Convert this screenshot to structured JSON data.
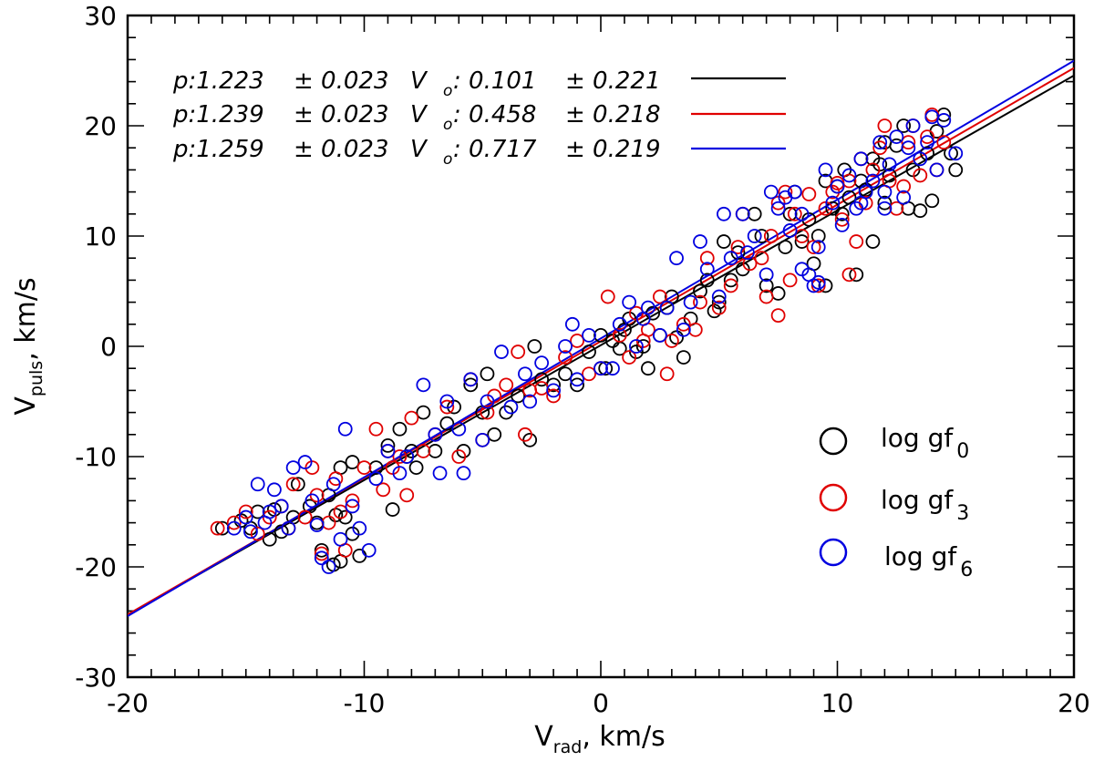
{
  "chart_data": {
    "type": "scatter",
    "title": "",
    "xlabel": {
      "main": "V",
      "sub": "rad",
      "tail": ", km/s"
    },
    "ylabel": {
      "main": "V",
      "sub": "puls",
      "tail": ", km/s"
    },
    "xlim": [
      -20,
      20
    ],
    "ylim": [
      -30,
      30
    ],
    "xticks": [
      -20,
      -10,
      0,
      10,
      20
    ],
    "yticks": [
      -30,
      -20,
      -10,
      0,
      10,
      20,
      30
    ],
    "xtick_labels": [
      "-20",
      "-10",
      "0",
      "10",
      "20"
    ],
    "ytick_labels": [
      "-30",
      "-20",
      "-10",
      "0",
      "10",
      "20",
      "30"
    ],
    "grid": false,
    "legend_position": "bottom-right",
    "fit_annotations": [
      {
        "p_label": "p:1.223",
        "p_err": "± 0.023",
        "v_main": "V",
        "v_sub": "o",
        "v_value": ": 0.101",
        "v_err": "± 0.221",
        "color": "#000000"
      },
      {
        "p_label": "p:1.239",
        "p_err": "± 0.023",
        "v_main": "V",
        "v_sub": "o",
        "v_value": ": 0.458",
        "v_err": "± 0.218",
        "color": "#e00000"
      },
      {
        "p_label": "p:1.259",
        "p_err": "± 0.023",
        "v_main": "V",
        "v_sub": "o",
        "v_value": ": 0.717",
        "v_err": "± 0.219",
        "color": "#0000e0"
      }
    ],
    "fit_lines": [
      {
        "slope": 1.223,
        "intercept": 0.101,
        "color": "#000000"
      },
      {
        "slope": 1.239,
        "intercept": 0.458,
        "color": "#e00000"
      },
      {
        "slope": 1.259,
        "intercept": 0.717,
        "color": "#0000e0"
      }
    ],
    "series": [
      {
        "name_main": "log gf",
        "name_sub": "0",
        "color": "#000000",
        "points": [
          [
            -16,
            -16.5
          ],
          [
            -15.2,
            -15.8
          ],
          [
            -14.8,
            -16.5
          ],
          [
            -14.5,
            -15
          ],
          [
            -14,
            -17.5
          ],
          [
            -13.8,
            -14.8
          ],
          [
            -13.5,
            -16.8
          ],
          [
            -13,
            -15.5
          ],
          [
            -12.8,
            -12.5
          ],
          [
            -12.3,
            -14.5
          ],
          [
            -12,
            -16
          ],
          [
            -11.8,
            -18.5
          ],
          [
            -11.5,
            -13.5
          ],
          [
            -11.2,
            -15.3
          ],
          [
            -11,
            -19.5
          ],
          [
            -11,
            -11
          ],
          [
            -10.8,
            -15.5
          ],
          [
            -10.5,
            -17
          ],
          [
            -10.5,
            -10.5
          ],
          [
            -10.2,
            -19
          ],
          [
            -11.3,
            -19.8
          ],
          [
            -9.5,
            -11
          ],
          [
            -9,
            -9
          ],
          [
            -8.8,
            -14.8
          ],
          [
            -8.5,
            -7.5
          ],
          [
            -8.2,
            -10
          ],
          [
            -8,
            -9.5
          ],
          [
            -7.8,
            -11
          ],
          [
            -7.5,
            -6
          ],
          [
            -7,
            -9.5
          ],
          [
            -6.5,
            -7
          ],
          [
            -6.2,
            -5.5
          ],
          [
            -5.8,
            -9.5
          ],
          [
            -5.5,
            -3.5
          ],
          [
            -5,
            -6
          ],
          [
            -4.8,
            -2.5
          ],
          [
            -4.5,
            -8
          ],
          [
            -4,
            -6
          ],
          [
            -3.5,
            -4.5
          ],
          [
            -3,
            -8.5
          ],
          [
            -2.8,
            0
          ],
          [
            -2.5,
            -3
          ],
          [
            -2,
            -3.5
          ],
          [
            -1.5,
            -2.5
          ],
          [
            -1,
            -3.5
          ],
          [
            -0.5,
            -0.5
          ],
          [
            0,
            1
          ],
          [
            0.2,
            -2
          ],
          [
            0.5,
            0.5
          ],
          [
            0.8,
            -0.2
          ],
          [
            1,
            1.5
          ],
          [
            1.2,
            2.5
          ],
          [
            1.5,
            -0.5
          ],
          [
            1.8,
            0
          ],
          [
            2,
            -2
          ],
          [
            2.2,
            3
          ],
          [
            2.5,
            1
          ],
          [
            2.8,
            3.5
          ],
          [
            3,
            4.5
          ],
          [
            3.2,
            0.8
          ],
          [
            3.5,
            -1
          ],
          [
            3.8,
            2.5
          ],
          [
            4.2,
            5
          ],
          [
            4.5,
            6
          ],
          [
            4.8,
            3.2
          ],
          [
            5,
            4
          ],
          [
            5.2,
            9.5
          ],
          [
            5.5,
            6
          ],
          [
            5.8,
            8.5
          ],
          [
            6,
            7
          ],
          [
            6.5,
            12
          ],
          [
            6.8,
            10
          ],
          [
            7,
            5.5
          ],
          [
            7.5,
            4.8
          ],
          [
            7.8,
            9
          ],
          [
            8,
            12
          ],
          [
            8.2,
            14
          ],
          [
            8.5,
            9.5
          ],
          [
            8.8,
            11.5
          ],
          [
            9,
            7.5
          ],
          [
            9.2,
            10
          ],
          [
            9.5,
            5.5
          ],
          [
            9.8,
            12.5
          ],
          [
            10,
            14.5
          ],
          [
            10.2,
            12
          ],
          [
            10.5,
            13.5
          ],
          [
            10.8,
            6.5
          ],
          [
            11,
            15
          ],
          [
            11.2,
            14.2
          ],
          [
            11.5,
            9.5
          ],
          [
            11.8,
            16.5
          ],
          [
            12,
            13
          ],
          [
            12.2,
            15.5
          ],
          [
            12.5,
            18.2
          ],
          [
            12.8,
            20
          ],
          [
            13,
            12.5
          ],
          [
            13.2,
            16
          ],
          [
            13.5,
            12.3
          ],
          [
            13.8,
            17.5
          ],
          [
            14,
            13.2
          ],
          [
            14.2,
            19.5
          ],
          [
            14.5,
            21
          ],
          [
            14.8,
            17.5
          ],
          [
            15,
            16
          ],
          [
            12,
            18.5
          ],
          [
            9.5,
            15
          ],
          [
            10.3,
            16
          ],
          [
            11.5,
            17
          ]
        ]
      },
      {
        "name_main": "log gf",
        "name_sub": "3",
        "color": "#e00000",
        "points": [
          [
            -16.2,
            -16.5
          ],
          [
            -15.5,
            -16
          ],
          [
            -15,
            -15
          ],
          [
            -14.5,
            -17
          ],
          [
            -14,
            -15.5
          ],
          [
            -13.5,
            -14.5
          ],
          [
            -13.2,
            -16.5
          ],
          [
            -13,
            -12.5
          ],
          [
            -12.5,
            -15.5
          ],
          [
            -12.2,
            -11
          ],
          [
            -12,
            -13.5
          ],
          [
            -11.8,
            -18.8
          ],
          [
            -11.5,
            -16
          ],
          [
            -11.2,
            -12
          ],
          [
            -11,
            -15
          ],
          [
            -10.8,
            -18.5
          ],
          [
            -10.5,
            -14
          ],
          [
            -10,
            -11
          ],
          [
            -9.5,
            -7.5
          ],
          [
            -9.2,
            -13
          ],
          [
            -9,
            -9.5
          ],
          [
            -8.8,
            -11
          ],
          [
            -8.5,
            -10
          ],
          [
            -8.2,
            -13.5
          ],
          [
            -8,
            -6.5
          ],
          [
            -7.5,
            -9.5
          ],
          [
            -7,
            -8
          ],
          [
            -6.5,
            -5.5
          ],
          [
            -6,
            -10
          ],
          [
            -5.5,
            -3
          ],
          [
            -5,
            -8.5
          ],
          [
            -4.8,
            -6
          ],
          [
            -4.5,
            -4.5
          ],
          [
            -4,
            -3.5
          ],
          [
            -3.5,
            -0.5
          ],
          [
            -3.2,
            -8
          ],
          [
            -3,
            -4
          ],
          [
            -2.5,
            -3.8
          ],
          [
            -2,
            -4.5
          ],
          [
            -1.5,
            -1
          ],
          [
            -1,
            0.5
          ],
          [
            -0.5,
            -2.5
          ],
          [
            0,
            -2
          ],
          [
            0.3,
            4.5
          ],
          [
            0.8,
            1
          ],
          [
            1.2,
            -1
          ],
          [
            1.5,
            3
          ],
          [
            1.8,
            0.5
          ],
          [
            2,
            1.5
          ],
          [
            2.5,
            4.5
          ],
          [
            2.8,
            -2.5
          ],
          [
            3,
            0.5
          ],
          [
            3.5,
            2
          ],
          [
            4,
            1.5
          ],
          [
            4.2,
            4
          ],
          [
            4.5,
            8
          ],
          [
            5,
            3.5
          ],
          [
            5.5,
            5.5
          ],
          [
            5.8,
            9
          ],
          [
            6,
            12
          ],
          [
            6.3,
            7.5
          ],
          [
            6.8,
            8
          ],
          [
            7,
            4.5
          ],
          [
            7.2,
            10
          ],
          [
            7.5,
            13
          ],
          [
            7.8,
            14
          ],
          [
            8,
            6
          ],
          [
            8.2,
            12
          ],
          [
            8.5,
            10
          ],
          [
            8.8,
            13.8
          ],
          [
            9,
            9
          ],
          [
            9.2,
            5.5
          ],
          [
            9.5,
            12.5
          ],
          [
            9.8,
            14
          ],
          [
            10,
            14.8
          ],
          [
            10.2,
            11.5
          ],
          [
            10.5,
            15
          ],
          [
            10.8,
            9.5
          ],
          [
            11,
            17
          ],
          [
            11.2,
            13
          ],
          [
            11.5,
            16
          ],
          [
            11.8,
            18
          ],
          [
            12,
            20
          ],
          [
            12.2,
            15
          ],
          [
            12.5,
            12.5
          ],
          [
            12.8,
            14.5
          ],
          [
            13,
            18.5
          ],
          [
            13.2,
            20
          ],
          [
            13.5,
            15.5
          ],
          [
            13.8,
            19
          ],
          [
            14,
            21
          ],
          [
            14.2,
            16
          ],
          [
            14.5,
            18.5
          ],
          [
            10.5,
            6.5
          ],
          [
            7.5,
            2.8
          ]
        ]
      },
      {
        "name_main": "log gf",
        "name_sub": "6",
        "color": "#0000e0",
        "points": [
          [
            -15.5,
            -16.5
          ],
          [
            -15,
            -15.5
          ],
          [
            -14.8,
            -16.8
          ],
          [
            -14.5,
            -12.5
          ],
          [
            -14.2,
            -16
          ],
          [
            -14,
            -15
          ],
          [
            -13.8,
            -13
          ],
          [
            -13.5,
            -14.5
          ],
          [
            -13.2,
            -16.5
          ],
          [
            -13,
            -11
          ],
          [
            -12.5,
            -10.5
          ],
          [
            -12.2,
            -14
          ],
          [
            -12,
            -16.2
          ],
          [
            -11.8,
            -19.2
          ],
          [
            -11.5,
            -20
          ],
          [
            -11.3,
            -12.5
          ],
          [
            -11,
            -17.5
          ],
          [
            -10.8,
            -7.5
          ],
          [
            -10.5,
            -14.5
          ],
          [
            -10.2,
            -16.5
          ],
          [
            -9.8,
            -18.5
          ],
          [
            -9.5,
            -12
          ],
          [
            -9,
            -9.5
          ],
          [
            -8.5,
            -11.5
          ],
          [
            -8.2,
            -10
          ],
          [
            -7.5,
            -3.5
          ],
          [
            -7,
            -8
          ],
          [
            -6.8,
            -11.5
          ],
          [
            -6.5,
            -5
          ],
          [
            -6,
            -7.5
          ],
          [
            -5.8,
            -11.5
          ],
          [
            -5.5,
            -3
          ],
          [
            -5,
            -8.5
          ],
          [
            -4.8,
            -5
          ],
          [
            -4.2,
            -0.5
          ],
          [
            -3.8,
            -5.5
          ],
          [
            -3.2,
            -2.5
          ],
          [
            -3,
            -5
          ],
          [
            -2.5,
            -1.5
          ],
          [
            -2,
            -4
          ],
          [
            -1.5,
            0
          ],
          [
            -1.2,
            2
          ],
          [
            -1,
            -3
          ],
          [
            -0.5,
            1
          ],
          [
            0,
            -2
          ],
          [
            0.5,
            -2
          ],
          [
            0.8,
            2
          ],
          [
            1.2,
            4
          ],
          [
            1.5,
            0
          ],
          [
            1.8,
            2.5
          ],
          [
            2,
            3.5
          ],
          [
            2.5,
            1
          ],
          [
            2.8,
            3.5
          ],
          [
            3.2,
            8
          ],
          [
            3.5,
            1.5
          ],
          [
            3.8,
            4
          ],
          [
            4.2,
            9.5
          ],
          [
            4.5,
            7
          ],
          [
            5,
            4.5
          ],
          [
            5.2,
            12
          ],
          [
            5.5,
            8
          ],
          [
            6,
            12
          ],
          [
            6.2,
            8.5
          ],
          [
            6.5,
            10
          ],
          [
            7,
            6.5
          ],
          [
            7.2,
            14
          ],
          [
            7.5,
            12.5
          ],
          [
            7.8,
            13.5
          ],
          [
            8,
            10.5
          ],
          [
            8.2,
            14
          ],
          [
            8.5,
            12
          ],
          [
            8.8,
            6.5
          ],
          [
            9,
            5.5
          ],
          [
            9.2,
            9
          ],
          [
            9.5,
            16
          ],
          [
            9.8,
            13
          ],
          [
            10,
            14.5
          ],
          [
            10.2,
            11
          ],
          [
            10.5,
            15.5
          ],
          [
            10.8,
            12.5
          ],
          [
            11,
            17
          ],
          [
            11.2,
            14
          ],
          [
            11.5,
            15
          ],
          [
            11.8,
            18.5
          ],
          [
            12,
            12.5
          ],
          [
            12.2,
            16.5
          ],
          [
            12.5,
            19
          ],
          [
            12.8,
            13.5
          ],
          [
            13,
            18
          ],
          [
            13.2,
            20
          ],
          [
            13.5,
            17
          ],
          [
            13.8,
            18.5
          ],
          [
            14,
            20.8
          ],
          [
            14.2,
            16
          ],
          [
            14.5,
            20.5
          ],
          [
            15,
            17.5
          ],
          [
            9.2,
            5.8
          ],
          [
            12,
            14
          ],
          [
            11,
            13
          ],
          [
            8.5,
            7
          ]
        ]
      }
    ]
  }
}
